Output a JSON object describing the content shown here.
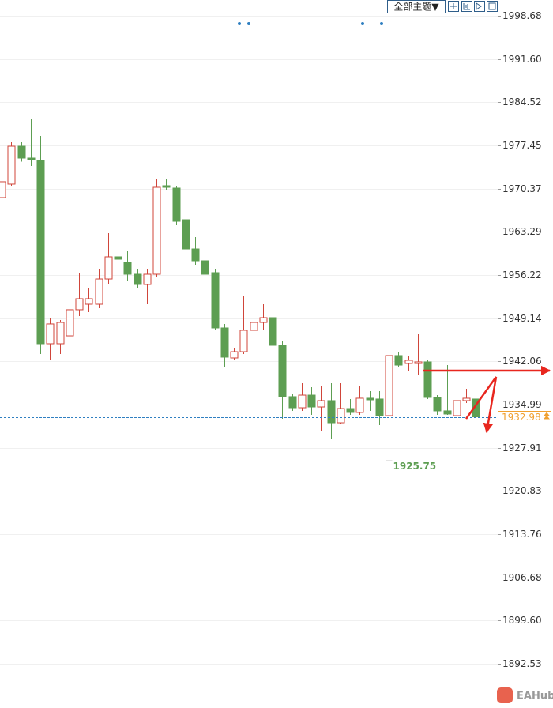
{
  "chart_data": {
    "type": "candlestick",
    "menu": "全部主题▼",
    "watermark": "EAHub",
    "up_color": "#d0453a",
    "down_color": "#5d9e52",
    "price_line_color": "#2f7fc1",
    "price_label_color": "#f0a030",
    "grid": true,
    "ylim": [
      1885.28,
      2001.27
    ],
    "yticks": [
      1998.68,
      {
        "value": 1991.6,
        "label": "1991.60"
      },
      1984.52,
      1977.45,
      1970.37,
      1963.29,
      1956.22,
      1949.14,
      1942.06,
      1934.99,
      1927.91,
      1920.83,
      1913.76,
      1906.68,
      {
        "value": 1899.6,
        "label": "1899.60"
      },
      1892.53
    ],
    "open": [
      1968.91,
      1971.11,
      1977.32,
      1975.38,
      1974.99,
      1944.96,
      1944.96,
      1946.25,
      1950.53,
      1951.43,
      1951.43,
      1955.57,
      1959.2,
      1958.29,
      1956.35,
      1954.67,
      1956.35,
      1970.85,
      1970.46,
      1965.28,
      1960.49,
      1958.55,
      1956.61,
      1947.55,
      1942.63,
      1943.66,
      1947.16,
      1948.45,
      1949.23,
      1944.7,
      1936.29,
      1934.47,
      1936.54,
      1934.6,
      1935.64,
      1932.01,
      1934.34,
      1933.7,
      1936.03,
      1935.9,
      1933.18,
      1943.02,
      1941.72,
      1941.72,
      1941.98,
      1936.16,
      1933.96,
      1933.18,
      1935.64,
      1935.9
    ],
    "high": [
      1977.97,
      1977.97,
      1977.97,
      1981.85,
      1979.0,
      1949.1,
      1948.84,
      1950.78,
      1956.61,
      1954.02,
      1957.26,
      1963.08,
      1960.49,
      1960.1,
      1957.26,
      1957.26,
      1971.88,
      1971.88,
      1970.85,
      1965.67,
      1962.43,
      1959.2,
      1957.26,
      1948.2,
      1944.31,
      1952.73,
      1949.75,
      1951.43,
      1954.41,
      1945.35,
      1936.8,
      1938.49,
      1937.84,
      1938.1,
      1938.49,
      1938.49,
      1935.9,
      1938.1,
      1937.19,
      1937.19,
      1946.51,
      1943.66,
      1943.02,
      1946.51,
      1942.37,
      1936.54,
      1941.46,
      1936.8,
      1937.58,
      1937.84
    ],
    "low": [
      1965.28,
      1970.85,
      1974.8,
      1974.09,
      1943.28,
      1942.37,
      1943.28,
      1944.96,
      1949.49,
      1950.14,
      1950.78,
      1954.67,
      1957.26,
      1955.32,
      1954.02,
      1951.43,
      1955.96,
      1970.2,
      1964.38,
      1960.1,
      1957.9,
      1954.02,
      1947.16,
      1941.08,
      1942.37,
      1943.28,
      1944.96,
      1947.16,
      1944.31,
      1932.66,
      1933.96,
      1933.96,
      1933.31,
      1930.72,
      1929.43,
      1931.76,
      1933.31,
      1933.31,
      1933.96,
      1931.63,
      1925.75,
      1941.08,
      1940.43,
      1939.78,
      1935.9,
      1933.31,
      1933.31,
      1931.37,
      1935.25,
      1932.01
    ],
    "close": [
      1971.5,
      1977.32,
      1975.38,
      1975.12,
      1944.96,
      1948.2,
      1948.45,
      1950.53,
      1952.34,
      1952.34,
      1955.57,
      1959.2,
      1958.81,
      1956.35,
      1954.67,
      1956.35,
      1970.59,
      1970.59,
      1965.02,
      1960.49,
      1958.55,
      1956.35,
      1947.55,
      1942.76,
      1943.66,
      1947.16,
      1948.45,
      1949.23,
      1944.7,
      1936.29,
      1934.47,
      1936.54,
      1934.6,
      1935.64,
      1932.01,
      1934.34,
      1933.7,
      1936.03,
      1935.77,
      1933.18,
      1943.02,
      1941.46,
      1942.24,
      1941.98,
      1936.16,
      1933.96,
      1933.44,
      1935.64,
      1936.03,
      1932.98
    ]
  }
}
